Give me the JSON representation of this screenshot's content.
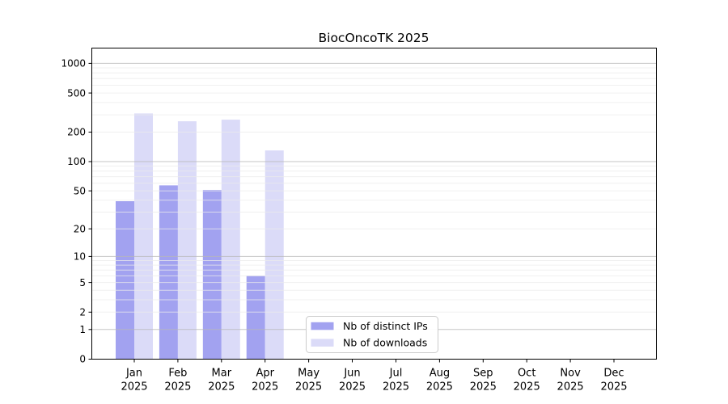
{
  "chart_data": {
    "type": "bar",
    "title": "BiocOncoTK 2025",
    "categories": [
      "Jan 2025",
      "Feb 2025",
      "Mar 2025",
      "Apr 2025",
      "May 2025",
      "Jun 2025",
      "Jul 2025",
      "Aug 2025",
      "Sep 2025",
      "Oct 2025",
      "Nov 2025",
      "Dec 2025"
    ],
    "series": [
      {
        "name": "Nb of distinct IPs",
        "color": "#a2a2f0",
        "values": [
          39,
          57,
          51,
          6,
          0,
          0,
          0,
          0,
          0,
          0,
          0,
          0
        ]
      },
      {
        "name": "Nb of downloads",
        "color": "#dbdbf8",
        "values": [
          310,
          258,
          268,
          130,
          0,
          0,
          0,
          0,
          0,
          0,
          0,
          0
        ]
      }
    ],
    "xlabel": "",
    "ylabel": "",
    "y_scale": "log1p",
    "ylim": [
      0,
      1430
    ],
    "y_ticks": [
      0,
      1,
      2,
      5,
      10,
      20,
      50,
      100,
      200,
      500,
      1000
    ],
    "y_major_gridlines": [
      1,
      10,
      100,
      1000
    ],
    "y_minor_gridlines": [
      2,
      3,
      4,
      5,
      6,
      7,
      8,
      9,
      20,
      30,
      40,
      50,
      60,
      70,
      80,
      90,
      200,
      300,
      400,
      500,
      600,
      700,
      800,
      900
    ],
    "grid": "horizontal",
    "legend_position": "lower-center",
    "colors": {
      "axis": "#000000",
      "major_grid": "#b8b8b8",
      "minor_grid": "#ebebeb",
      "legend_border": "#cccccc",
      "background": "#ffffff"
    }
  }
}
